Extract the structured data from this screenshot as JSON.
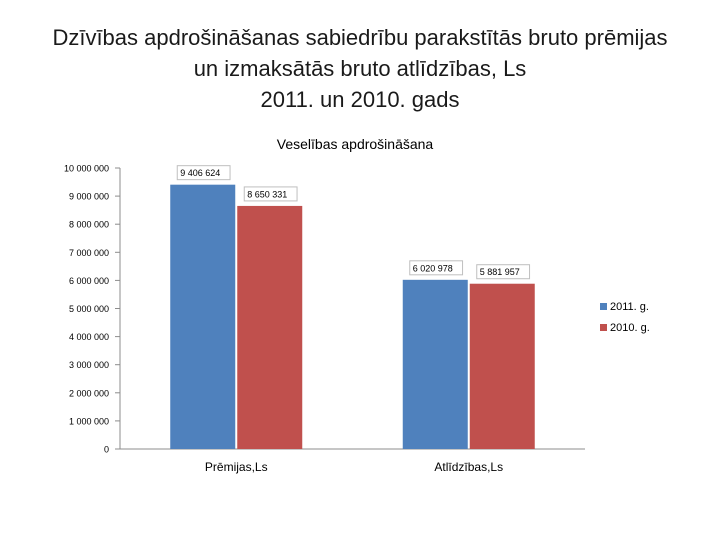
{
  "slide": {
    "title_lines": [
      "Dzīvības apdrošināšanas sabiedrību parakstītās bruto prēmijas",
      "un izmaksātās bruto atlīdzības, Ls",
      "2011. un 2010. gads"
    ]
  },
  "chart_data": {
    "type": "bar",
    "title": "Veselības apdrošināšana",
    "categories": [
      "Prēmijas,Ls",
      "Atlīdzības,Ls"
    ],
    "series": [
      {
        "name": "2011. g.",
        "color": "#4f81bd",
        "values": [
          9406624,
          6020978
        ],
        "labels": [
          "9 406 624",
          "6 020 978"
        ]
      },
      {
        "name": "2010. g.",
        "color": "#c0504d",
        "values": [
          8650331,
          5881957
        ],
        "labels": [
          "8 650 331",
          "5 881 957"
        ]
      }
    ],
    "ylim": [
      0,
      10000000
    ],
    "yticks": [
      {
        "value": 0,
        "label": "0"
      },
      {
        "value": 1000000,
        "label": "1 000 000"
      },
      {
        "value": 2000000,
        "label": "2 000 000"
      },
      {
        "value": 3000000,
        "label": "3 000 000"
      },
      {
        "value": 4000000,
        "label": "4 000 000"
      },
      {
        "value": 5000000,
        "label": "5 000 000"
      },
      {
        "value": 6000000,
        "label": "6 000 000"
      },
      {
        "value": 7000000,
        "label": "7 000 000"
      },
      {
        "value": 8000000,
        "label": "8 000 000"
      },
      {
        "value": 9000000,
        "label": "9 000 000"
      },
      {
        "value": 10000000,
        "label": "10 000 000"
      }
    ],
    "grid": false,
    "legend_position": "right"
  }
}
